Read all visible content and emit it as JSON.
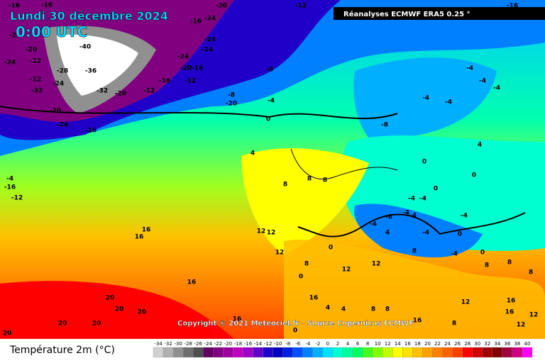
{
  "header": {
    "date": "Lundi 30 décembre 2024",
    "time": "0:00 UTC",
    "source": "Réanalyses ECMWF ERA5 0.25 °"
  },
  "copyright": "Copyright © 2021 Meteociel.fr - Source Copernicus ECMWF",
  "legend": {
    "title": "Température 2m (°C)",
    "ticks": [
      -34,
      -32,
      -30,
      -28,
      -26,
      -24,
      -22,
      -20,
      -18,
      -16,
      -14,
      -12,
      -10,
      -8,
      -6,
      -4,
      -2,
      0,
      2,
      4,
      6,
      8,
      10,
      12,
      14,
      16,
      18,
      20,
      22,
      24,
      26,
      28,
      30,
      32,
      34,
      36,
      38,
      40
    ],
    "colors": [
      "#d0d0d0",
      "#b0b0b0",
      "#909090",
      "#6e6e6e",
      "#4e4e4e",
      "#600060",
      "#800080",
      "#a000a0",
      "#c000c0",
      "#a000c8",
      "#6000c8",
      "#2000c8",
      "#0000c0",
      "#0020e0",
      "#0050ff",
      "#0080ff",
      "#00b0ff",
      "#00e0ff",
      "#00ffd0",
      "#00ffa0",
      "#00ff60",
      "#40ff20",
      "#80ff00",
      "#c0ff00",
      "#ffff00",
      "#ffe000",
      "#ffc000",
      "#ffa000",
      "#ff8000",
      "#ff6000",
      "#ff4000",
      "#ff0000",
      "#d00000",
      "#a00000",
      "#800000",
      "#a00040",
      "#d00080",
      "#ff00ff"
    ]
  },
  "contour_labels": [
    -16,
    -16,
    -20,
    -12,
    -16,
    -16,
    -24,
    -2,
    -20,
    -24,
    -12,
    -40,
    -36,
    -28,
    -24,
    -12,
    -32,
    -32,
    -20,
    -12,
    -16,
    -24,
    -20,
    -16,
    -12,
    -24,
    -24,
    -8,
    -8,
    -20,
    -4,
    0,
    -16,
    -20,
    -24,
    4,
    8,
    8,
    8,
    12,
    12,
    16,
    16,
    16,
    12,
    20,
    20,
    20,
    20,
    20,
    20,
    16,
    0,
    -4,
    -4,
    -8,
    -4,
    -4,
    -4,
    4,
    0,
    0,
    -4,
    -4,
    -4,
    -8,
    -4,
    -4,
    -4,
    4,
    -4,
    0,
    -4,
    0,
    8,
    8,
    8,
    16,
    16,
    16,
    4,
    4,
    8,
    8,
    16,
    12,
    8,
    0,
    12,
    12,
    0,
    12,
    12,
    -16,
    -12,
    -4,
    8,
    0,
    8
  ]
}
